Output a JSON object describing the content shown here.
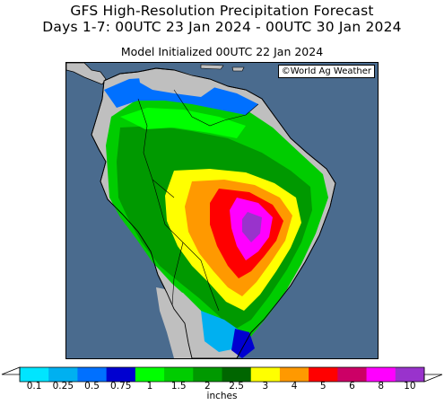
{
  "title": {
    "line1": "GFS High-Resolution Precipitation Forecast",
    "line2": "Days 1-7: 00UTC 23 Jan 2024 - 00UTC 30 Jan 2024",
    "initialized": "Model Initialized 00UTC 22 Jan 2024"
  },
  "credit": "©World Ag Weather",
  "legend": {
    "units": "inches",
    "ticks": [
      "0.1",
      "0.25",
      "0.5",
      "0.75",
      "1",
      "1.5",
      "2",
      "2.5",
      "3",
      "4",
      "5",
      "6",
      "8",
      "10"
    ],
    "colors": [
      "#00e5ff",
      "#00b0f0",
      "#0070ff",
      "#0000d0",
      "#00ff00",
      "#00cc00",
      "#009900",
      "#006600",
      "#ffff00",
      "#ff9900",
      "#ff0000",
      "#cc0066",
      "#ff00ff",
      "#9933cc"
    ]
  },
  "map_colors": {
    "ocean": "#4a6b8e",
    "dry_land": "#bfbfbf",
    "border": "#000000"
  }
}
